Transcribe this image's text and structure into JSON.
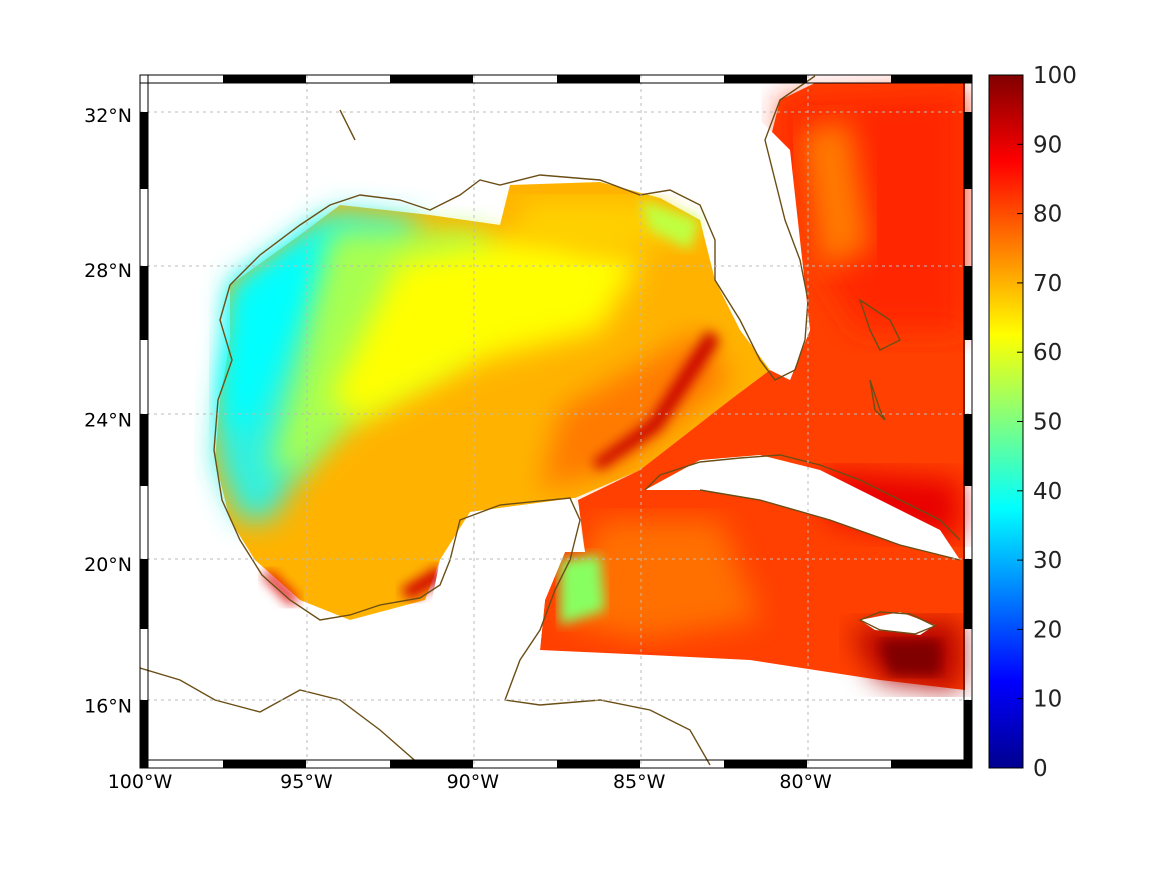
{
  "map": {
    "lon_range": [
      -100,
      -75
    ],
    "lat_range": [
      14.2,
      33
    ],
    "x_tick_labels": [
      "100°W",
      "95°W",
      "90°W",
      "85°W",
      "80°W"
    ],
    "x_tick_values": [
      -100,
      -95,
      -90,
      -85,
      -80
    ],
    "y_tick_labels": [
      "32°N",
      "28°N",
      "24°N",
      "20°N",
      "16°N"
    ],
    "y_tick_values": [
      32,
      28,
      24,
      20,
      16
    ],
    "grid": "dotted",
    "frame": "alternating black-white border",
    "coastline_color": "#6b4e16",
    "land_color": "#ffffff"
  },
  "colorbar": {
    "min": 0,
    "max": 100,
    "tick_labels": [
      "100",
      "90",
      "80",
      "70",
      "60",
      "50",
      "40",
      "30",
      "20",
      "10",
      "0"
    ],
    "colormap": "jet",
    "placement": "right"
  }
}
